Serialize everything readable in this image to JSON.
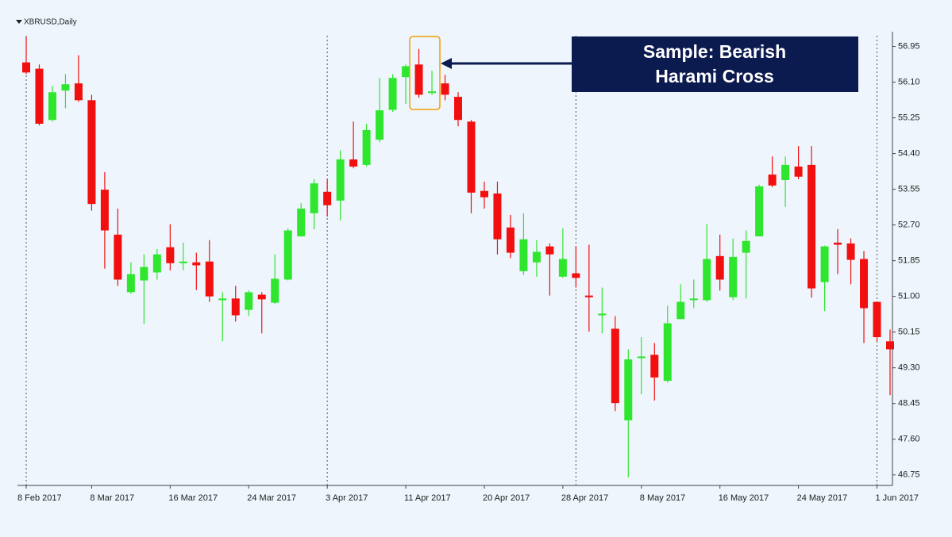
{
  "chart_data": {
    "type": "candlestick",
    "title": "XBRUSD,Daily",
    "categories": [
      "8 Feb 2017",
      null,
      null,
      null,
      null,
      "8 Mar 2017",
      null,
      null,
      null,
      null,
      null,
      "16 Mar 2017",
      null,
      null,
      null,
      null,
      null,
      "24 Mar 2017",
      null,
      null,
      null,
      null,
      null,
      "3 Apr 2017",
      null,
      null,
      null,
      null,
      null,
      "11 Apr 2017",
      null,
      null,
      null,
      null,
      null,
      "20 Apr 2017",
      null,
      null,
      null,
      null,
      null,
      "28 Apr 2017",
      null,
      null,
      null,
      null,
      null,
      "8 May 2017",
      null,
      null,
      null,
      null,
      null,
      "16 May 2017",
      null,
      null,
      null,
      null,
      null,
      "24 May 2017",
      null,
      null,
      null,
      null,
      null,
      "1 Jun 2017",
      null
    ],
    "open": [
      56.57,
      56.42,
      55.2,
      55.9,
      56.07,
      55.67,
      53.54,
      52.47,
      51.1,
      51.38,
      51.57,
      52.17,
      51.79,
      51.81,
      51.83,
      50.91,
      50.95,
      50.68,
      51.04,
      50.85,
      51.4,
      52.43,
      52.98,
      53.49,
      53.28,
      54.26,
      54.13,
      54.73,
      55.44,
      56.22,
      56.52,
      55.84,
      56.07,
      55.75,
      55.16,
      53.51,
      53.45,
      52.64,
      51.6,
      51.81,
      52.19,
      51.47,
      51.55,
      51.02,
      50.55,
      50.23,
      48.05,
      49.53,
      49.61,
      48.99,
      50.46,
      50.91,
      50.91,
      51.96,
      50.98,
      52.04,
      52.43,
      53.9,
      53.77,
      54.09,
      54.13,
      51.34,
      52.28,
      52.26,
      51.89,
      50.87,
      49.93
    ],
    "high": [
      57.18,
      56.52,
      56.01,
      56.29,
      56.74,
      55.8,
      53.96,
      53.09,
      51.81,
      52.0,
      52.13,
      52.72,
      52.28,
      52.04,
      52.34,
      51.1,
      51.25,
      51.14,
      51.1,
      52.0,
      52.62,
      53.22,
      53.79,
      53.79,
      54.48,
      55.16,
      55.11,
      56.2,
      56.29,
      56.52,
      56.89,
      56.37,
      56.27,
      55.86,
      55.2,
      53.73,
      53.73,
      52.94,
      52.98,
      52.34,
      52.26,
      52.62,
      52.19,
      52.23,
      51.21,
      50.53,
      49.74,
      50.03,
      49.89,
      50.78,
      51.29,
      51.4,
      52.72,
      52.47,
      52.38,
      52.57,
      53.66,
      54.33,
      54.33,
      54.58,
      54.58,
      52.21,
      52.6,
      52.38,
      52.08,
      50.87,
      50.21
    ],
    "low": [
      56.29,
      55.07,
      55.16,
      55.48,
      55.63,
      53.04,
      51.66,
      51.25,
      51.06,
      50.35,
      51.4,
      51.62,
      51.62,
      51.15,
      50.87,
      49.93,
      50.4,
      50.53,
      50.12,
      50.82,
      51.38,
      52.42,
      52.6,
      52.9,
      52.81,
      54.05,
      54.09,
      54.67,
      55.39,
      55.58,
      55.73,
      55.8,
      55.67,
      55.05,
      52.98,
      53.09,
      52.0,
      51.91,
      51.51,
      51.47,
      51.02,
      51.44,
      51.21,
      50.16,
      50.12,
      48.27,
      46.69,
      48.67,
      48.52,
      48.95,
      50.46,
      50.72,
      50.87,
      51.14,
      50.91,
      50.95,
      52.43,
      53.6,
      53.13,
      53.79,
      50.97,
      50.65,
      51.53,
      51.29,
      49.89,
      49.93,
      48.65
    ],
    "close": [
      56.33,
      55.11,
      55.86,
      56.05,
      55.67,
      53.2,
      52.57,
      51.4,
      51.53,
      51.7,
      52.0,
      51.79,
      51.83,
      51.74,
      51.0,
      50.95,
      50.55,
      51.1,
      50.93,
      51.42,
      52.57,
      53.09,
      53.69,
      53.17,
      54.26,
      54.09,
      54.96,
      55.43,
      56.2,
      56.48,
      55.8,
      55.88,
      55.8,
      55.2,
      53.47,
      53.36,
      52.36,
      52.04,
      52.36,
      52.06,
      52.0,
      51.89,
      51.44,
      50.98,
      50.59,
      48.46,
      49.5,
      49.57,
      49.07,
      50.36,
      50.87,
      50.95,
      51.89,
      51.4,
      51.94,
      52.32,
      53.62,
      53.64,
      54.13,
      53.85,
      51.19,
      52.19,
      52.23,
      51.87,
      50.72,
      50.03,
      49.74
    ],
    "up_color": "#2fe62f",
    "down_color": "#f20f0f",
    "ylim": [
      46.5,
      57.3
    ],
    "yticks": [
      56.95,
      {
        "value": 56.1,
        "label": "56.10"
      },
      55.25,
      {
        "value": 54.4,
        "label": "54.40"
      },
      53.55,
      {
        "value": 52.7,
        "label": "52.70"
      },
      51.85,
      {
        "value": 51,
        "label": "51.00"
      },
      50.15,
      {
        "value": 49.3,
        "label": "49.30"
      },
      48.45,
      {
        "value": 47.6,
        "label": "47.60"
      },
      46.75
    ],
    "annotation": [
      "Sample: Bearish",
      "Harami Cross"
    ]
  }
}
